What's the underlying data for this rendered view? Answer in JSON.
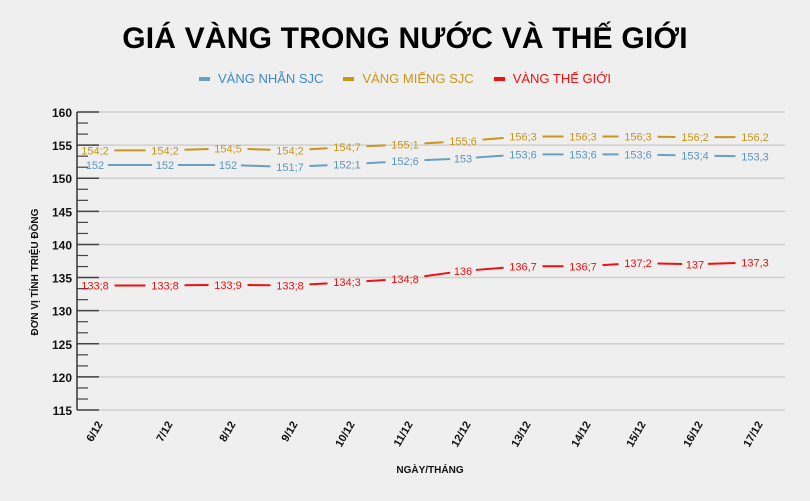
{
  "title": "GIÁ VÀNG TRONG NƯỚC VÀ THẾ GIỚI",
  "legend": [
    {
      "label": "VÀNG NHẪN SJC",
      "color": "#3d8ac6",
      "swatch": "#6a9fbf"
    },
    {
      "label": "VÀNG MIẾNG SJC",
      "color": "#c8961a",
      "swatch": "#c8961a"
    },
    {
      "label": "VÀNG THẾ GIỚI",
      "color": "#ee1111",
      "swatch": "#ee1111"
    }
  ],
  "chart_data": {
    "type": "line",
    "title": "GIÁ VÀNG TRONG NƯỚC VÀ THẾ GIỚI",
    "xlabel": "NGÀY/THÁNG",
    "ylabel": "ĐƠN VỊ TÍNH TRIỆU ĐỒNG",
    "ylim": [
      115,
      160
    ],
    "yticks": [
      115,
      120,
      125,
      130,
      135,
      140,
      145,
      150,
      155,
      160
    ],
    "grid": true,
    "legend_position": "top",
    "categories": [
      "6/12",
      "7/12",
      "8/12",
      "9/12",
      "10/12",
      "11/12",
      "12/12",
      "13/12",
      "14/12",
      "15/12",
      "16/12",
      "17/12"
    ],
    "series": [
      {
        "name": "VÀNG NHẪN SJC",
        "color": "#6a9fbf",
        "label_color": "#5b95bd",
        "values": [
          152,
          152,
          152,
          151.7,
          152.1,
          152.6,
          153,
          153.6,
          153.6,
          153.6,
          153.4,
          153.3
        ],
        "labels": [
          "152",
          "152",
          "152",
          "151;7",
          "152;1",
          "152;6",
          "153",
          "153;6",
          "153;6",
          "153;6",
          "153;4",
          "153,3"
        ]
      },
      {
        "name": "VÀNG MIẾNG SJC",
        "color": "#c8961a",
        "label_color": "#c8961a",
        "values": [
          154.2,
          154.2,
          154.5,
          154.2,
          154.7,
          155.1,
          155.6,
          156.3,
          156.3,
          156.3,
          156.2,
          156.2
        ],
        "labels": [
          "154;2",
          "154;2",
          "154;5",
          "154;2",
          "154;7",
          "155;1",
          "155;6",
          "156;3",
          "156;3",
          "156;3",
          "156;2",
          "156,2"
        ]
      },
      {
        "name": "VÀNG THẾ GIỚI",
        "color": "#ee1111",
        "label_color": "#ee1111",
        "values": [
          133.8,
          133.8,
          133.9,
          133.8,
          134.3,
          134.8,
          136,
          136.7,
          136.7,
          137.2,
          137,
          137.3
        ],
        "labels": [
          "133;8",
          "133;8",
          "133;9",
          "133;8",
          "134;3",
          "134;8",
          "136",
          "136,7",
          "136;7",
          "137;2",
          "137",
          "137,3"
        ]
      }
    ]
  }
}
